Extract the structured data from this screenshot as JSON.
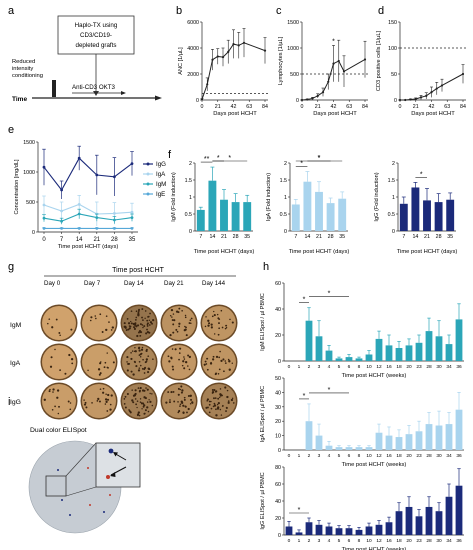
{
  "panel_letters": [
    "a",
    "b",
    "c",
    "d",
    "e",
    "f",
    "g",
    "h",
    "i"
  ],
  "panel_a": {
    "box_text": [
      "Haplo-TX using",
      "CD3/CD19-",
      "depleted grafts"
    ],
    "conditioning_text": [
      "Reduced",
      "intensity",
      "conditioning"
    ],
    "antibody_text": "Anti-CD3 OKT3",
    "time_label": "Time"
  },
  "colors": {
    "black": "#222222",
    "igg_dark": "#1b2a7a",
    "iga_light": "#a9d4ee",
    "igm_teal": "#2ba6b8",
    "ige_mid": "#56a8d8",
    "pink_spot": "#c0392b",
    "plate_bg": "#c9cfd6",
    "well_fill": "#caa06c"
  },
  "panel_g": {
    "header": "Time post HCHT",
    "days": [
      "Day 0",
      "Day 7",
      "Day 14",
      "Day 21",
      "Day 144"
    ],
    "rows": [
      "IgM",
      "IgA",
      "IgG"
    ],
    "spot_density": [
      [
        0.1,
        0.15,
        0.95,
        0.4,
        0.35
      ],
      [
        0.12,
        0.18,
        0.65,
        0.3,
        0.35
      ],
      [
        0.2,
        0.3,
        0.75,
        0.55,
        0.7
      ]
    ]
  },
  "panel_i": {
    "title": "Dual color ELISpot"
  },
  "chart_data": [
    {
      "panel": "b",
      "type": "line",
      "ylabel": "ANC [1/µL]",
      "xlabel": "Days post HCHT",
      "x": [
        0,
        7,
        14,
        21,
        28,
        35,
        42,
        49,
        56,
        84
      ],
      "values": [
        50,
        1200,
        3100,
        3350,
        3300,
        3700,
        4300,
        4200,
        4400,
        3800
      ],
      "err": [
        50,
        500,
        800,
        600,
        700,
        900,
        1100,
        1000,
        1100,
        1000
      ],
      "xticks": [
        0,
        21,
        42,
        63,
        84
      ],
      "yticks": [
        0,
        2000,
        4000,
        6000
      ],
      "ylim": [
        0,
        6000
      ],
      "reference_line": 500
    },
    {
      "panel": "c",
      "type": "line",
      "ylabel": "Lymphocytes [1/µL]",
      "xlabel": "Days post HCHT",
      "x": [
        0,
        7,
        14,
        21,
        28,
        35,
        42,
        49,
        56,
        84
      ],
      "values": [
        0,
        10,
        30,
        80,
        150,
        350,
        700,
        750,
        550,
        780
      ],
      "err": [
        0,
        10,
        20,
        40,
        80,
        150,
        350,
        400,
        300,
        350
      ],
      "annotations": [
        {
          "x": 42,
          "text": "*"
        }
      ],
      "xticks": [
        0,
        21,
        42,
        63,
        84
      ],
      "yticks": [
        0,
        500,
        1000,
        1500
      ],
      "ylim": [
        0,
        1500
      ],
      "reference_line": 500
    },
    {
      "panel": "d",
      "type": "line",
      "ylabel": "CD3 positive cells [1/µL]",
      "xlabel": "Days post HCHT",
      "x": [
        0,
        7,
        14,
        21,
        28,
        35,
        42,
        49,
        56,
        84
      ],
      "values": [
        0,
        0,
        1,
        2,
        5,
        8,
        15,
        22,
        28,
        50
      ],
      "err": [
        0,
        0,
        1,
        2,
        4,
        6,
        10,
        12,
        12,
        18
      ],
      "xticks": [
        0,
        21,
        42,
        63,
        84
      ],
      "yticks": [
        0,
        50,
        100,
        150
      ],
      "ylim": [
        0,
        150
      ],
      "reference_line": 100
    },
    {
      "panel": "e",
      "type": "line",
      "ylabel": "Concentration [mg/dL]",
      "xlabel": "Time post HCHT (days)",
      "categories": [
        "0",
        "7",
        "14",
        "21",
        "28",
        "35"
      ],
      "yticks": [
        0,
        500,
        1000,
        1500
      ],
      "ylim": [
        0,
        1500
      ],
      "series": [
        {
          "name": "IgG",
          "values": [
            1080,
            700,
            1230,
            950,
            920,
            1140
          ],
          "err": [
            300,
            150,
            200,
            330,
            320,
            200
          ]
        },
        {
          "name": "IgA",
          "values": [
            450,
            350,
            460,
            300,
            310,
            330
          ],
          "err": [
            150,
            150,
            150,
            200,
            180,
            150
          ]
        },
        {
          "name": "IgM",
          "values": [
            230,
            180,
            300,
            240,
            200,
            240
          ],
          "err": [
            60,
            50,
            80,
            60,
            60,
            60
          ]
        },
        {
          "name": "IgE",
          "values": [
            60,
            60,
            60,
            60,
            60,
            60
          ],
          "err": [
            10,
            10,
            10,
            10,
            10,
            10
          ]
        }
      ]
    },
    {
      "panel": "f-IgM",
      "type": "bar",
      "ylabel": "IgM (Fold induction)",
      "xlabel": "Time post HCHT (days)",
      "categories": [
        "7",
        "14",
        "21",
        "28",
        "35"
      ],
      "values": [
        0.62,
        1.48,
        0.92,
        0.85,
        0.85
      ],
      "err": [
        0.08,
        0.4,
        0.3,
        0.25,
        0.2
      ],
      "yticks": [
        0.0,
        0.5,
        1.0,
        1.5,
        2.0
      ],
      "ylim": [
        0,
        2.0
      ],
      "significance": [
        {
          "from": 0,
          "to": 1,
          "label": "**"
        },
        {
          "from": 1,
          "to": 2,
          "label": "*"
        },
        {
          "from": 1,
          "to": 4,
          "label": "*"
        }
      ]
    },
    {
      "panel": "f-IgA",
      "type": "bar",
      "ylabel": "IgA (Fold induction)",
      "xlabel": "Time post HCHT (days)",
      "categories": [
        "7",
        "14",
        "21",
        "28",
        "35"
      ],
      "values": [
        0.78,
        1.45,
        1.15,
        0.82,
        0.95
      ],
      "err": [
        0.15,
        0.3,
        0.3,
        0.15,
        0.2
      ],
      "yticks": [
        0.0,
        0.5,
        1.0,
        1.5,
        2.0
      ],
      "ylim": [
        0,
        2.0
      ],
      "significance": [
        {
          "from": 0,
          "to": 1,
          "label": "*"
        },
        {
          "from": 1,
          "to": 3,
          "label": "*"
        },
        {
          "from": 0,
          "to": 4,
          "label": "*"
        }
      ]
    },
    {
      "panel": "f-IgG",
      "type": "bar",
      "ylabel": "IgG (Fold induction)",
      "xlabel": "Time post HCHT (days)",
      "categories": [
        "7",
        "14",
        "21",
        "28",
        "35"
      ],
      "values": [
        0.8,
        1.28,
        0.9,
        0.85,
        0.92
      ],
      "err": [
        0.2,
        0.15,
        0.35,
        0.25,
        0.2
      ],
      "yticks": [
        0.0,
        0.5,
        1.0,
        1.5,
        2.0
      ],
      "ylim": [
        0,
        2.0
      ],
      "significance": [
        {
          "from": 1,
          "to": 2,
          "label": "*"
        }
      ]
    },
    {
      "panel": "h-IgM",
      "type": "bar",
      "ylabel": "IgM ELISpot / µl PBMC",
      "xlabel": "Time post HCHT (weeks)",
      "categories": [
        "0",
        "1",
        "2",
        "3",
        "4",
        "5",
        "6",
        "8",
        "10",
        "12",
        "16",
        "18",
        "20",
        "23",
        "28",
        "30",
        "34",
        "36"
      ],
      "values": [
        0,
        0,
        31,
        19,
        8,
        2,
        3,
        2,
        5,
        17,
        12,
        10,
        12,
        14,
        23,
        19,
        13,
        32
      ],
      "err": [
        0,
        0,
        10,
        12,
        4,
        1,
        2,
        1,
        3,
        6,
        8,
        5,
        5,
        6,
        10,
        12,
        7,
        12
      ],
      "yticks": [
        0,
        20,
        40,
        60
      ],
      "ylim": [
        0,
        60
      ],
      "significance": [
        {
          "from": 1,
          "to": 2,
          "label": "*"
        },
        {
          "from": 2,
          "to": 6,
          "label": "*"
        }
      ]
    },
    {
      "panel": "h-IgA",
      "type": "bar",
      "ylabel": "IgA ELISpot / µl PBMC",
      "xlabel": "Time post HCHT (weeks)",
      "categories": [
        "0",
        "1",
        "2",
        "3",
        "4",
        "5",
        "6",
        "8",
        "10",
        "12",
        "16",
        "18",
        "20",
        "23",
        "28",
        "30",
        "34",
        "36"
      ],
      "values": [
        0,
        0,
        20,
        10,
        3,
        2,
        2,
        2,
        2,
        12,
        10,
        9,
        11,
        13,
        18,
        17,
        18,
        28
      ],
      "err": [
        0,
        0,
        12,
        8,
        3,
        1,
        1,
        1,
        1,
        6,
        6,
        5,
        6,
        7,
        8,
        10,
        8,
        12
      ],
      "yticks": [
        0,
        10,
        20,
        30,
        40,
        50
      ],
      "ylim": [
        0,
        50
      ],
      "significance": [
        {
          "from": 1,
          "to": 2,
          "label": "*"
        },
        {
          "from": 2,
          "to": 6,
          "label": "*"
        }
      ]
    },
    {
      "panel": "h-IgG",
      "type": "bar",
      "ylabel": "IgG ELISpot / µl PBMC",
      "xlabel": "Time post HCHT (weeks)",
      "categories": [
        "0",
        "1",
        "2",
        "3",
        "4",
        "5",
        "6",
        "8",
        "10",
        "12",
        "16",
        "18",
        "20",
        "23",
        "28",
        "30",
        "34",
        "36"
      ],
      "values": [
        10,
        3,
        15,
        12,
        10,
        8,
        8,
        6,
        10,
        12,
        15,
        28,
        33,
        22,
        33,
        28,
        45,
        58
      ],
      "err": [
        6,
        3,
        5,
        5,
        4,
        3,
        3,
        3,
        4,
        5,
        6,
        10,
        12,
        8,
        12,
        10,
        15,
        20
      ],
      "yticks": [
        0,
        20,
        40,
        60,
        80
      ],
      "ylim": [
        0,
        80
      ],
      "significance": [
        {
          "from": 0,
          "to": 2,
          "label": "*"
        }
      ]
    }
  ]
}
